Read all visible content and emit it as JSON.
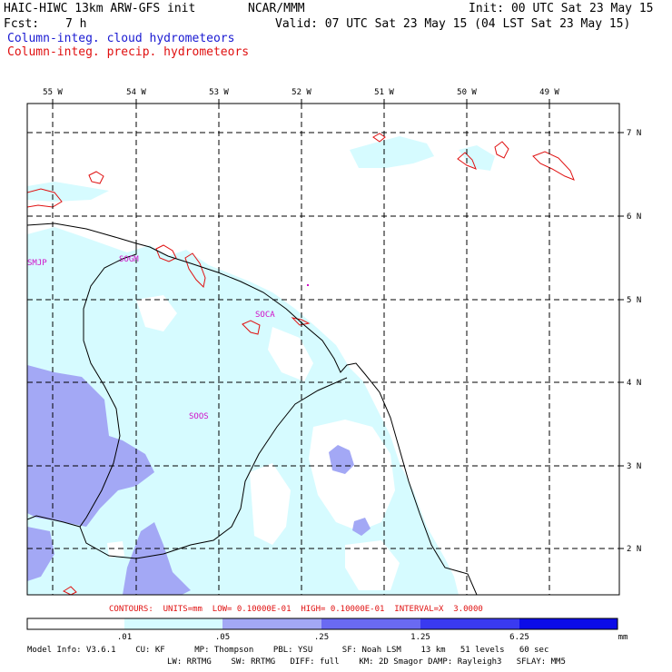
{
  "header": {
    "model_title": "HAIC-HIWC 13km ARW-GFS init",
    "org": "NCAR/MMM",
    "init_label": "Init: 00 UTC Sat 23 May 15",
    "fcst_label": "Fcst:",
    "fcst_value": "7 h",
    "valid_label": "Valid: 07 UTC Sat 23 May 15 (04 LST Sat 23 May 15)"
  },
  "fields": {
    "cloud": "Column-integ. cloud hydrometeors",
    "precip": "Column-integ. precip. hydrometeors"
  },
  "colors": {
    "cloud_1": "#d6fbff",
    "cloud_2": "#a3a8f5",
    "cloud_3": "#6a6af2",
    "cloud_4": "#3a3af0",
    "cloud_5": "#0c0ce8",
    "precip_contour": "#e01010",
    "station_label": "#d010c8",
    "field_cloud_text": "#1a1ad2"
  },
  "map": {
    "lon_labels": [
      "55 W",
      "54 W",
      "53 W",
      "52 W",
      "51 W",
      "50 W",
      "49 W"
    ],
    "lat_labels": [
      "7 N",
      "6 N",
      "5 N",
      "4 N",
      "3 N",
      "2 N"
    ],
    "stations": [
      "SMJP",
      "SOGM",
      "SOCA",
      "SOOS"
    ]
  },
  "contour_info": "CONTOURS:  UNITS=mm  LOW= 0.10000E-01  HIGH= 0.10000E-01  INTERVAL=X  3.0000",
  "colorbar": {
    "ticks": [
      ".01",
      ".05",
      ".25",
      "1.25",
      "6.25"
    ],
    "unit": "mm"
  },
  "model_info": {
    "line1": "Model Info: V3.6.1    CU: KF      MP: Thompson    PBL: YSU      SF: Noah LSM    13 km   51 levels   60 sec",
    "line2": "LW: RRTMG    SW: RRTMG   DIFF: full    KM: 2D Smagor DAMP: Rayleigh3   SFLAY: MM5"
  }
}
